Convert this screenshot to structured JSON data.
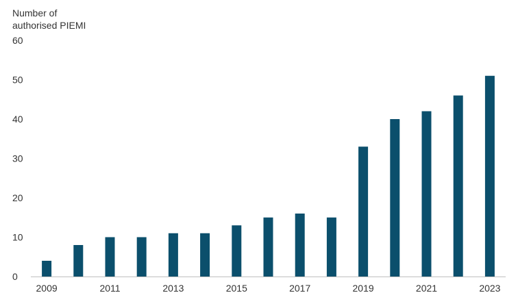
{
  "chart_data": {
    "type": "bar",
    "title": "",
    "ylabel_lines": [
      "Number of",
      "authorised PIEMI"
    ],
    "xlabel": "",
    "categories": [
      "2009",
      "2010",
      "2011",
      "2012",
      "2013",
      "2014",
      "2015",
      "2016",
      "2017",
      "2018",
      "2019",
      "2020",
      "2021",
      "2022",
      "2023"
    ],
    "x_tick_labels": [
      "2009",
      "",
      "2011",
      "",
      "2013",
      "",
      "2015",
      "",
      "2017",
      "",
      "2019",
      "",
      "2021",
      "",
      "2023"
    ],
    "series": [
      {
        "values": [
          4,
          8,
          10,
          10,
          11,
          11,
          13,
          15,
          16,
          15,
          33,
          40,
          42,
          46,
          51
        ]
      }
    ],
    "ylim": [
      0,
      60
    ],
    "yticks": [
      0,
      10,
      20,
      30,
      40,
      50,
      60
    ],
    "grid": false,
    "legend": "none",
    "colors": {
      "bar": "#0b4f6c",
      "axis": "#bfbfbf",
      "text": "#333333"
    }
  }
}
